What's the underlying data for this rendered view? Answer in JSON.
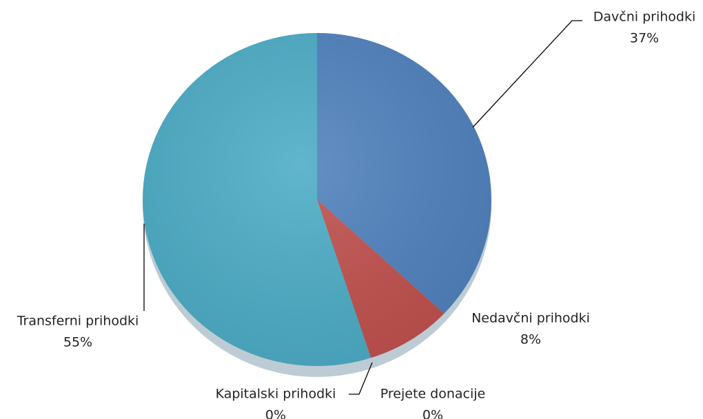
{
  "chart_data": {
    "type": "pie",
    "categories": [
      "Davčni prihodki",
      "Nedavčni prihodki",
      "Kapitalski prihodki",
      "Prejete donacije",
      "Transferni prihodki"
    ],
    "values": [
      37,
      8,
      0,
      0,
      55
    ],
    "value_labels": [
      "37%",
      "8%",
      "0%",
      "0%",
      "55%"
    ],
    "colors": [
      "#4f81bd",
      "#c0504d",
      "#9bbb59",
      "#8064a2",
      "#4bacc6"
    ]
  }
}
